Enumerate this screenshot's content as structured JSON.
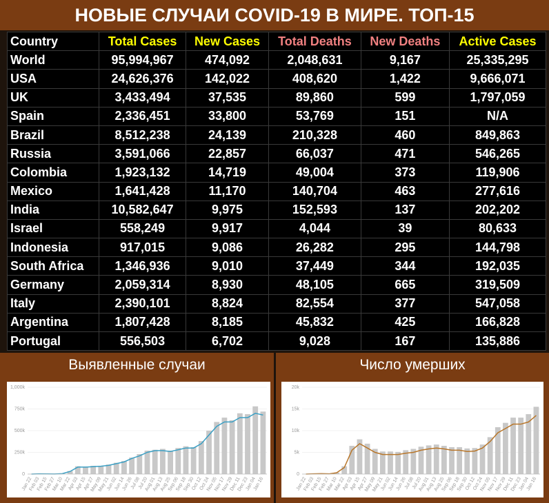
{
  "title": "НОВЫЕ СЛУЧАИ COVID-19 В МИРЕ. ТОП-15",
  "table": {
    "columns": [
      "Country",
      "Total Cases",
      "New Cases",
      "Total Deaths",
      "New Deaths",
      "Active Cases"
    ],
    "column_colors": [
      "#ffffff",
      "#ffff00",
      "#ffff00",
      "#f08080",
      "#f08080",
      "#ffff00"
    ],
    "rows": [
      [
        "World",
        "95,994,967",
        "474,092",
        "2,048,631",
        "9,167",
        "25,335,295"
      ],
      [
        "USA",
        "24,626,376",
        "142,022",
        "408,620",
        "1,422",
        "9,666,071"
      ],
      [
        "UK",
        "3,433,494",
        "37,535",
        "89,860",
        "599",
        "1,797,059"
      ],
      [
        "Spain",
        "2,336,451",
        "33,800",
        "53,769",
        "151",
        "N/A"
      ],
      [
        "Brazil",
        "8,512,238",
        "24,139",
        "210,328",
        "460",
        "849,863"
      ],
      [
        "Russia",
        "3,591,066",
        "22,857",
        "66,037",
        "471",
        "546,265"
      ],
      [
        "Colombia",
        "1,923,132",
        "14,719",
        "49,004",
        "373",
        "119,906"
      ],
      [
        "Mexico",
        "1,641,428",
        "11,170",
        "140,704",
        "463",
        "277,616"
      ],
      [
        "India",
        "10,582,647",
        "9,975",
        "152,593",
        "137",
        "202,202"
      ],
      [
        "Israel",
        "558,249",
        "9,917",
        "4,044",
        "39",
        "80,633"
      ],
      [
        "Indonesia",
        "917,015",
        "9,086",
        "26,282",
        "295",
        "144,798"
      ],
      [
        "South Africa",
        "1,346,936",
        "9,010",
        "37,449",
        "344",
        "192,035"
      ],
      [
        "Germany",
        "2,059,314",
        "8,930",
        "48,105",
        "665",
        "319,509"
      ],
      [
        "Italy",
        "2,390,101",
        "8,824",
        "82,554",
        "377",
        "547,058"
      ],
      [
        "Argentina",
        "1,807,428",
        "8,185",
        "45,832",
        "425",
        "166,828"
      ],
      [
        "Portugal",
        "556,503",
        "6,702",
        "9,028",
        "167",
        "135,886"
      ]
    ]
  },
  "chart_data": [
    {
      "type": "bar",
      "title": "Выявленные случаи",
      "categories": [
        "Jan 22",
        "Feb 03",
        "Feb 15",
        "Feb 27",
        "Mar 10",
        "Mar 22",
        "Apr 03",
        "Apr 15",
        "Apr 27",
        "May 09",
        "May 21",
        "Jun 02",
        "Jun 14",
        "Jun 26",
        "Jul 08",
        "Jul 20",
        "Aug 01",
        "Aug 13",
        "Aug 25",
        "Sep 06",
        "Sep 18",
        "Sep 30",
        "Oct 12",
        "Oct 24",
        "Nov 05",
        "Nov 17",
        "Nov 29",
        "Dec 11",
        "Dec 23",
        "Jan 04",
        "Jan 16"
      ],
      "series": [
        {
          "type": "bar",
          "color": "#c8c8c8",
          "values": [
            0,
            3000,
            2000,
            1000,
            6000,
            35000,
            90000,
            85000,
            95000,
            95000,
            110000,
            130000,
            150000,
            190000,
            230000,
            270000,
            280000,
            290000,
            270000,
            300000,
            320000,
            310000,
            380000,
            500000,
            600000,
            650000,
            620000,
            700000,
            690000,
            780000,
            720000
          ]
        },
        {
          "type": "line",
          "color": "#3a9fc4",
          "values": [
            0,
            3000,
            2000,
            1000,
            5000,
            30000,
            80000,
            80000,
            85000,
            90000,
            100000,
            120000,
            140000,
            180000,
            210000,
            250000,
            270000,
            270000,
            260000,
            280000,
            300000,
            300000,
            350000,
            450000,
            550000,
            600000,
            600000,
            650000,
            650000,
            700000,
            680000
          ]
        }
      ],
      "ylim": [
        0,
        1000000
      ],
      "yticks": [
        0,
        {
          "value": 250000,
          "label": "250k"
        },
        {
          "value": 500000,
          "label": "500k"
        },
        {
          "value": 750000,
          "label": "750k"
        },
        {
          "value": 1000000,
          "label": "1,000k"
        }
      ]
    },
    {
      "type": "bar",
      "title": "Число умерших",
      "categories": [
        "Jan 22",
        "Feb 03",
        "Feb 15",
        "Feb 27",
        "Mar 10",
        "Mar 22",
        "Apr 03",
        "Apr 15",
        "Apr 27",
        "May 09",
        "May 21",
        "Jun 02",
        "Jun 14",
        "Jun 26",
        "Jul 08",
        "Jul 20",
        "Aug 01",
        "Aug 13",
        "Aug 25",
        "Sep 06",
        "Sep 18",
        "Sep 30",
        "Oct 12",
        "Oct 24",
        "Nov 05",
        "Nov 17",
        "Nov 29",
        "Dec 11",
        "Dec 23",
        "Jan 04",
        "Jan 16"
      ],
      "series": [
        {
          "type": "bar",
          "color": "#c8c8c8",
          "values": [
            0,
            60,
            120,
            60,
            350,
            1800,
            6500,
            8000,
            7000,
            5800,
            5200,
            5200,
            5100,
            5500,
            5800,
            6300,
            6600,
            6800,
            6500,
            6200,
            6200,
            5900,
            6000,
            6800,
            8500,
            10800,
            11800,
            13000,
            13000,
            13800,
            15500
          ]
        },
        {
          "type": "line",
          "color": "#b8762a",
          "values": [
            0,
            50,
            100,
            50,
            300,
            1500,
            5500,
            7000,
            6000,
            5000,
            4500,
            4500,
            4500,
            4800,
            5000,
            5500,
            5800,
            6000,
            5800,
            5500,
            5500,
            5200,
            5300,
            6000,
            7500,
            9500,
            10500,
            11500,
            11500,
            12000,
            13500
          ]
        }
      ],
      "ylim": [
        0,
        20000
      ],
      "yticks": [
        0,
        {
          "value": 5000,
          "label": "5k"
        },
        {
          "value": 10000,
          "label": "10k"
        },
        {
          "value": 15000,
          "label": "15k"
        },
        {
          "value": 20000,
          "label": "20k"
        }
      ]
    }
  ]
}
